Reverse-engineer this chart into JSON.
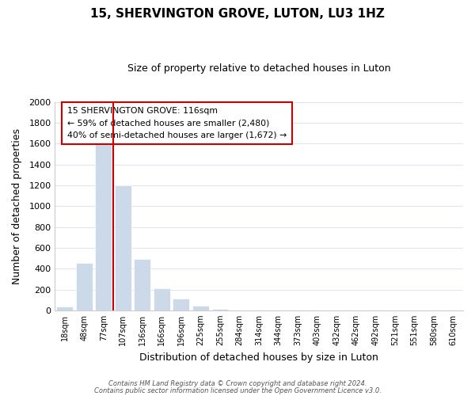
{
  "title": "15, SHERVINGTON GROVE, LUTON, LU3 1HZ",
  "subtitle": "Size of property relative to detached houses in Luton",
  "xlabel": "Distribution of detached houses by size in Luton",
  "ylabel": "Number of detached properties",
  "bar_labels": [
    "18sqm",
    "48sqm",
    "77sqm",
    "107sqm",
    "136sqm",
    "166sqm",
    "196sqm",
    "225sqm",
    "255sqm",
    "284sqm",
    "314sqm",
    "344sqm",
    "373sqm",
    "403sqm",
    "432sqm",
    "462sqm",
    "492sqm",
    "521sqm",
    "551sqm",
    "580sqm",
    "610sqm"
  ],
  "bar_values": [
    35,
    455,
    1600,
    1200,
    490,
    210,
    115,
    45,
    15,
    0,
    0,
    0,
    0,
    0,
    0,
    0,
    0,
    0,
    0,
    0,
    0
  ],
  "bar_color": "#ccd9e8",
  "bar_edge_color": "#ffffff",
  "background_color": "#ffffff",
  "grid_color": "#dde6f0",
  "ylim": [
    0,
    2000
  ],
  "property_line_color": "#cc0000",
  "annotation_text_line1": "15 SHERVINGTON GROVE: 116sqm",
  "annotation_text_line2": "← 59% of detached houses are smaller (2,480)",
  "annotation_text_line3": "40% of semi-detached houses are larger (1,672) →",
  "annotation_box_color": "#cc0000",
  "footer_line1": "Contains HM Land Registry data © Crown copyright and database right 2024.",
  "footer_line2": "Contains public sector information licensed under the Open Government Licence v3.0."
}
